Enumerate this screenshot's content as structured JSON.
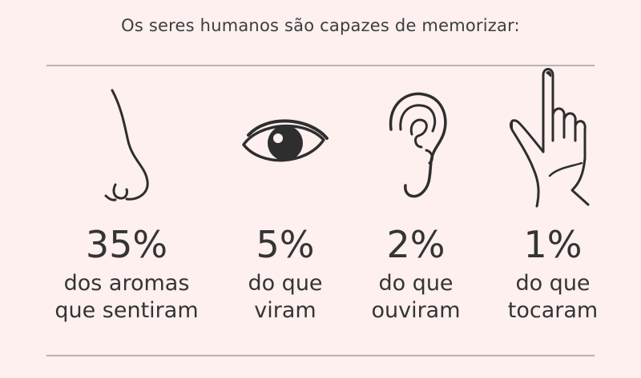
{
  "title": "Os seres humanos são capazes de memorizar:",
  "items": [
    {
      "icon": "nose-icon",
      "percent": "35%",
      "line1": "dos aromas",
      "line2": "que sentiram"
    },
    {
      "icon": "eye-icon",
      "percent": "5%",
      "line1": "do que",
      "line2": "viram"
    },
    {
      "icon": "ear-icon",
      "percent": "2%",
      "line1": "do que",
      "line2": "ouviram"
    },
    {
      "icon": "finger-icon",
      "percent": "1%",
      "line1": "do que",
      "line2": "tocaram"
    }
  ]
}
